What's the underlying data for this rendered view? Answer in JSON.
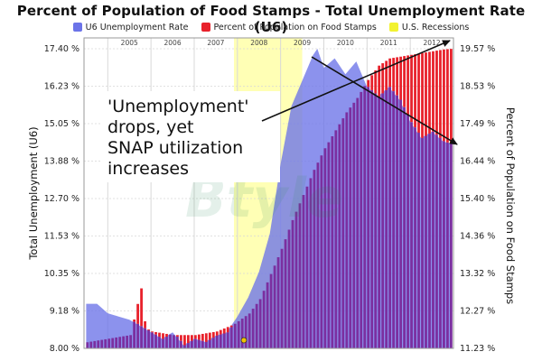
{
  "chart_data": {
    "type": "area",
    "title": "Percent of Population of Food Stamps - Total Unemployment Rate (U6)",
    "ylabel_left": "Total Unemployment (U6)",
    "ylabel_right": "Percent of Population on Food Stamps",
    "left_ticks": [
      "8.00 %",
      "9.18 %",
      "10.35 %",
      "11.53 %",
      "12.70 %",
      "13.88 %",
      "15.05 %",
      "16.23 %",
      "17.40 %"
    ],
    "right_ticks": [
      "11.23 %",
      "12.27 %",
      "13.32 %",
      "14.36 %",
      "15.40 %",
      "16.44 %",
      "17.49 %",
      "18.53 %",
      "19.57 %"
    ],
    "left_range": [
      8.0,
      17.4
    ],
    "right_range": [
      11.23,
      19.57
    ],
    "year_labels": [
      "2005",
      "2006",
      "2007",
      "2008",
      "2009",
      "2010",
      "2011",
      "2012"
    ],
    "grid": true,
    "legend_position": "top",
    "recession": {
      "start": 2007.92,
      "end": 2009.5
    },
    "series": [
      {
        "name": "U6 Unemployment Rate",
        "axis": "left",
        "color": "#6b73e8",
        "points": [
          [
            2004.5,
            9.4
          ],
          [
            2004.75,
            9.4
          ],
          [
            2005.0,
            9.1
          ],
          [
            2005.25,
            9.0
          ],
          [
            2005.5,
            8.9
          ],
          [
            2005.75,
            8.7
          ],
          [
            2006.0,
            8.5
          ],
          [
            2006.25,
            8.3
          ],
          [
            2006.5,
            8.5
          ],
          [
            2006.75,
            8.1
          ],
          [
            2007.0,
            8.3
          ],
          [
            2007.25,
            8.2
          ],
          [
            2007.5,
            8.4
          ],
          [
            2007.75,
            8.5
          ],
          [
            2008.0,
            9.0
          ],
          [
            2008.25,
            9.6
          ],
          [
            2008.5,
            10.4
          ],
          [
            2008.75,
            11.6
          ],
          [
            2009.0,
            13.8
          ],
          [
            2009.25,
            15.6
          ],
          [
            2009.5,
            16.4
          ],
          [
            2009.75,
            17.2
          ],
          [
            2009.85,
            17.4
          ],
          [
            2010.0,
            16.8
          ],
          [
            2010.25,
            17.1
          ],
          [
            2010.5,
            16.6
          ],
          [
            2010.75,
            17.0
          ],
          [
            2011.0,
            16.2
          ],
          [
            2011.25,
            15.9
          ],
          [
            2011.5,
            16.2
          ],
          [
            2011.75,
            15.8
          ],
          [
            2012.0,
            15.1
          ],
          [
            2012.25,
            14.6
          ],
          [
            2012.5,
            14.8
          ],
          [
            2012.75,
            14.5
          ],
          [
            2012.95,
            14.4
          ]
        ]
      },
      {
        "name": "Percent of Population on Food Stamps",
        "axis": "right",
        "color": "#e8212b",
        "points": [
          [
            2004.5,
            11.4
          ],
          [
            2005.0,
            11.5
          ],
          [
            2005.5,
            11.6
          ],
          [
            2005.75,
            12.9
          ],
          [
            2005.85,
            11.8
          ],
          [
            2006.0,
            11.7
          ],
          [
            2006.5,
            11.6
          ],
          [
            2007.0,
            11.6
          ],
          [
            2007.5,
            11.7
          ],
          [
            2007.9,
            11.9
          ],
          [
            2008.25,
            12.2
          ],
          [
            2008.5,
            12.6
          ],
          [
            2008.75,
            13.3
          ],
          [
            2009.0,
            14.0
          ],
          [
            2009.25,
            14.8
          ],
          [
            2009.5,
            15.5
          ],
          [
            2009.75,
            16.2
          ],
          [
            2010.0,
            16.8
          ],
          [
            2010.25,
            17.3
          ],
          [
            2010.5,
            17.8
          ],
          [
            2010.75,
            18.2
          ],
          [
            2011.0,
            18.7
          ],
          [
            2011.25,
            19.1
          ],
          [
            2011.5,
            19.3
          ],
          [
            2011.75,
            19.35
          ],
          [
            2012.0,
            19.4
          ],
          [
            2012.25,
            19.45
          ],
          [
            2012.5,
            19.5
          ],
          [
            2012.75,
            19.55
          ],
          [
            2012.95,
            19.57
          ]
        ]
      }
    ],
    "annotation": [
      "'Unemployment'",
      "drops, yet",
      "SNAP utilization",
      "increases"
    ],
    "watermark": "Btyle"
  },
  "colors": {
    "u6": "#6b73e8",
    "snap": "#e8212b",
    "overlap": "#7b2fa0",
    "recession": "#ffffa8",
    "grid": "#d8d8d8",
    "legend_recession": "#f2f230"
  }
}
